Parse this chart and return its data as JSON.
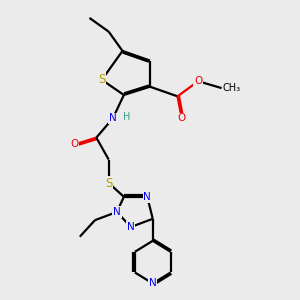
{
  "background_color": "#ebebeb",
  "atoms": {
    "colors": {
      "C": "#000000",
      "H": "#3a9a8a",
      "N": "#0000ee",
      "O": "#ee0000",
      "S": "#b8a000"
    }
  },
  "bond_color": "#000000",
  "bond_width": 1.6,
  "dbo": 0.055
}
